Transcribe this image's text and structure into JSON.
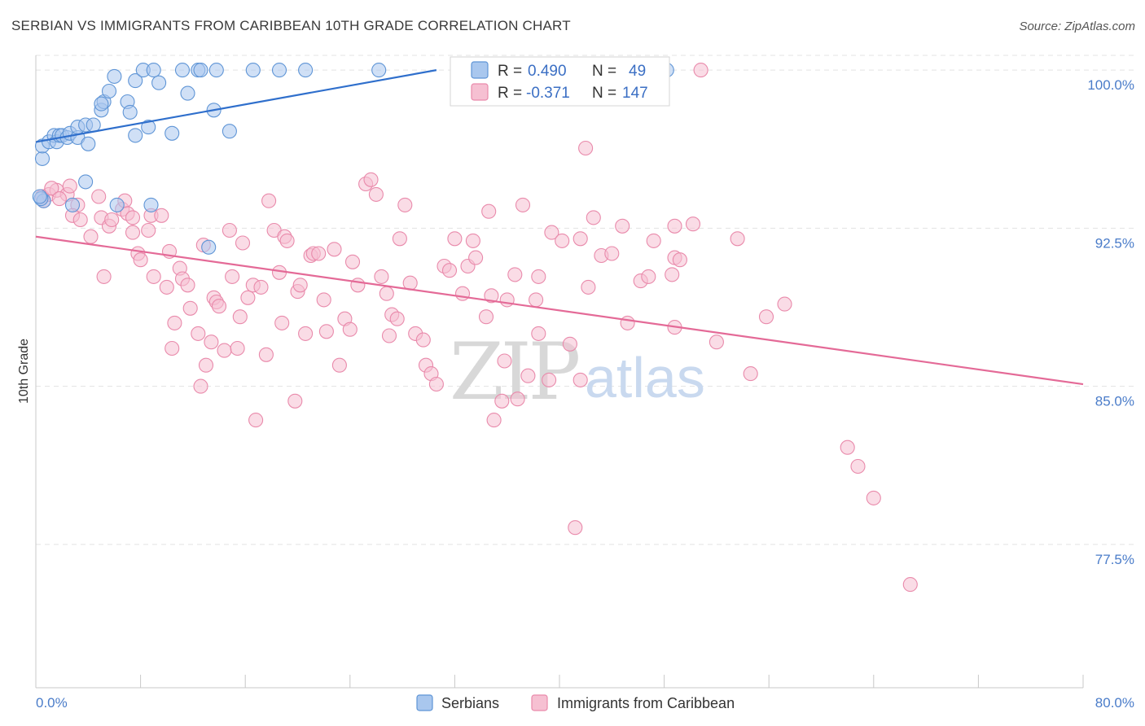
{
  "title": "SERBIAN VS IMMIGRANTS FROM CARIBBEAN 10TH GRADE CORRELATION CHART",
  "source": "Source: ZipAtlas.com",
  "watermark": {
    "zip": "ZIP",
    "atlas": "atlas"
  },
  "colors": {
    "serbians_fill": "#a9c7ee",
    "serbians_stroke": "#5f95d6",
    "serbians_line": "#2f6fcc",
    "caribbean_fill": "#f6c0d2",
    "caribbean_stroke": "#e98aab",
    "caribbean_line": "#e46a97",
    "grid": "#e3e3e3",
    "axis_text": "#4a7cc9"
  },
  "legend": {
    "rows": [
      {
        "r_label": "R =",
        "r_value": "0.490",
        "n_label": "N =",
        "n_value": "49"
      },
      {
        "r_label": "R =",
        "r_value": "-0.371",
        "n_label": "N =",
        "n_value": "147"
      }
    ]
  },
  "chart_data": {
    "type": "scatter",
    "title": "SERBIAN VS IMMIGRANTS FROM CARIBBEAN 10TH GRADE CORRELATION CHART",
    "xlabel": "",
    "ylabel": "10th Grade",
    "xlim": [
      0,
      80
    ],
    "ylim": [
      70.7,
      100.7
    ],
    "x_tick_labels": [
      "0.0%",
      "80.0%"
    ],
    "y_ticks": [
      100.0,
      92.5,
      85.0,
      77.5
    ],
    "y_tick_labels": [
      "100.0%",
      "92.5%",
      "85.0%",
      "77.5%"
    ],
    "grid": true,
    "legend_position": "bottom",
    "series": [
      {
        "name": "Serbians",
        "trend": {
          "x": [
            0.0,
            30.6
          ],
          "y": [
            96.59,
            100.0
          ]
        },
        "points": [
          [
            0.5,
            95.8
          ],
          [
            0.5,
            96.4
          ],
          [
            1.0,
            96.6
          ],
          [
            1.4,
            96.9
          ],
          [
            1.6,
            96.6
          ],
          [
            1.8,
            96.9
          ],
          [
            2.0,
            96.9
          ],
          [
            2.4,
            96.8
          ],
          [
            2.6,
            97.0
          ],
          [
            3.2,
            96.8
          ],
          [
            3.2,
            97.3
          ],
          [
            3.8,
            97.4
          ],
          [
            4.0,
            96.5
          ],
          [
            4.4,
            97.4
          ],
          [
            5.0,
            98.1
          ],
          [
            5.2,
            98.5
          ],
          [
            5.0,
            98.4
          ],
          [
            5.6,
            99.0
          ],
          [
            6.0,
            99.7
          ],
          [
            7.0,
            98.5
          ],
          [
            7.2,
            98.0
          ],
          [
            7.6,
            96.9
          ],
          [
            7.6,
            99.5
          ],
          [
            8.6,
            97.3
          ],
          [
            8.2,
            100.0
          ],
          [
            9.0,
            100.0
          ],
          [
            9.4,
            99.4
          ],
          [
            10.4,
            97.0
          ],
          [
            11.2,
            100.0
          ],
          [
            11.6,
            98.9
          ],
          [
            12.4,
            100.0
          ],
          [
            12.6,
            100.0
          ],
          [
            13.6,
            98.1
          ],
          [
            13.8,
            100.0
          ],
          [
            14.8,
            97.1
          ],
          [
            16.6,
            100.0
          ],
          [
            18.6,
            100.0
          ],
          [
            20.6,
            100.0
          ],
          [
            26.2,
            100.0
          ],
          [
            37.2,
            100.0
          ],
          [
            48.2,
            100.0
          ],
          [
            3.8,
            94.7
          ],
          [
            2.8,
            93.6
          ],
          [
            6.2,
            93.6
          ],
          [
            8.8,
            93.6
          ],
          [
            13.2,
            91.6
          ],
          [
            0.6,
            93.8
          ],
          [
            0.4,
            93.9
          ],
          [
            0.3,
            94.0
          ]
        ]
      },
      {
        "name": "Immigrants from Caribbean",
        "trend": {
          "x": [
            0.0,
            80.0
          ],
          "y": [
            92.1,
            85.1
          ]
        },
        "points": [
          [
            0.5,
            94.0
          ],
          [
            0.6,
            93.8
          ],
          [
            1.0,
            94.1
          ],
          [
            1.6,
            94.3
          ],
          [
            1.2,
            94.4
          ],
          [
            2.4,
            94.1
          ],
          [
            2.6,
            94.5
          ],
          [
            1.8,
            93.9
          ],
          [
            3.2,
            93.6
          ],
          [
            2.8,
            93.1
          ],
          [
            3.4,
            92.9
          ],
          [
            4.2,
            92.1
          ],
          [
            4.8,
            94.0
          ],
          [
            5.0,
            93.0
          ],
          [
            5.6,
            92.6
          ],
          [
            5.2,
            90.2
          ],
          [
            5.8,
            92.9
          ],
          [
            6.6,
            93.4
          ],
          [
            6.8,
            93.8
          ],
          [
            7.0,
            93.2
          ],
          [
            7.4,
            93.0
          ],
          [
            7.4,
            92.3
          ],
          [
            7.8,
            91.3
          ],
          [
            8.0,
            91.0
          ],
          [
            8.6,
            92.4
          ],
          [
            8.8,
            93.1
          ],
          [
            9.0,
            90.2
          ],
          [
            9.6,
            93.1
          ],
          [
            10.0,
            89.7
          ],
          [
            10.2,
            91.4
          ],
          [
            10.6,
            88.0
          ],
          [
            10.4,
            86.8
          ],
          [
            11.0,
            90.6
          ],
          [
            11.2,
            90.1
          ],
          [
            11.6,
            89.8
          ],
          [
            11.8,
            88.7
          ],
          [
            12.4,
            87.5
          ],
          [
            12.6,
            85.0
          ],
          [
            12.8,
            91.7
          ],
          [
            13.0,
            86.0
          ],
          [
            13.4,
            87.1
          ],
          [
            13.6,
            89.2
          ],
          [
            13.8,
            89.0
          ],
          [
            14.0,
            88.8
          ],
          [
            14.4,
            86.7
          ],
          [
            14.8,
            92.4
          ],
          [
            15.0,
            90.2
          ],
          [
            15.4,
            86.8
          ],
          [
            15.6,
            88.3
          ],
          [
            15.8,
            91.8
          ],
          [
            16.2,
            89.2
          ],
          [
            16.6,
            89.8
          ],
          [
            16.8,
            83.4
          ],
          [
            17.2,
            89.7
          ],
          [
            17.6,
            86.5
          ],
          [
            17.8,
            93.8
          ],
          [
            18.2,
            92.4
          ],
          [
            18.6,
            90.4
          ],
          [
            18.8,
            88.0
          ],
          [
            19.0,
            92.1
          ],
          [
            19.2,
            91.9
          ],
          [
            19.8,
            84.3
          ],
          [
            20.0,
            89.5
          ],
          [
            20.2,
            89.8
          ],
          [
            20.6,
            87.5
          ],
          [
            21.0,
            91.2
          ],
          [
            21.2,
            91.3
          ],
          [
            21.6,
            91.3
          ],
          [
            22.0,
            89.1
          ],
          [
            22.2,
            87.6
          ],
          [
            22.8,
            91.5
          ],
          [
            23.2,
            86.0
          ],
          [
            23.6,
            88.2
          ],
          [
            24.0,
            87.7
          ],
          [
            24.2,
            90.9
          ],
          [
            24.6,
            89.8
          ],
          [
            25.2,
            94.6
          ],
          [
            25.6,
            94.8
          ],
          [
            26.0,
            94.1
          ],
          [
            26.4,
            90.2
          ],
          [
            26.8,
            89.4
          ],
          [
            27.0,
            87.4
          ],
          [
            27.2,
            88.4
          ],
          [
            27.6,
            88.2
          ],
          [
            27.8,
            92.0
          ],
          [
            28.2,
            93.6
          ],
          [
            28.6,
            89.9
          ],
          [
            29.0,
            87.5
          ],
          [
            29.6,
            87.2
          ],
          [
            29.8,
            86.0
          ],
          [
            30.2,
            85.6
          ],
          [
            30.6,
            85.1
          ],
          [
            31.2,
            90.7
          ],
          [
            31.6,
            90.5
          ],
          [
            32.0,
            92.0
          ],
          [
            32.6,
            89.4
          ],
          [
            33.0,
            90.7
          ],
          [
            33.4,
            91.9
          ],
          [
            33.6,
            91.1
          ],
          [
            34.4,
            88.3
          ],
          [
            34.6,
            93.3
          ],
          [
            34.8,
            89.3
          ],
          [
            35.0,
            83.4
          ],
          [
            35.6,
            84.3
          ],
          [
            35.8,
            86.2
          ],
          [
            36.0,
            89.1
          ],
          [
            36.6,
            90.3
          ],
          [
            36.8,
            84.4
          ],
          [
            37.2,
            93.6
          ],
          [
            37.6,
            85.5
          ],
          [
            38.2,
            89.1
          ],
          [
            38.4,
            87.5
          ],
          [
            38.4,
            90.2
          ],
          [
            39.2,
            85.3
          ],
          [
            39.4,
            92.3
          ],
          [
            40.2,
            91.9
          ],
          [
            40.8,
            87.0
          ],
          [
            41.6,
            85.3
          ],
          [
            41.2,
            78.3
          ],
          [
            41.6,
            92.0
          ],
          [
            42.0,
            96.3
          ],
          [
            42.2,
            89.7
          ],
          [
            42.6,
            93.0
          ],
          [
            43.2,
            91.2
          ],
          [
            44.0,
            91.3
          ],
          [
            44.8,
            92.6
          ],
          [
            45.2,
            88.0
          ],
          [
            46.2,
            90.0
          ],
          [
            46.8,
            90.2
          ],
          [
            47.2,
            91.9
          ],
          [
            48.6,
            90.3
          ],
          [
            48.8,
            92.6
          ],
          [
            48.8,
            91.1
          ],
          [
            48.8,
            87.8
          ],
          [
            49.2,
            91.0
          ],
          [
            50.2,
            92.7
          ],
          [
            50.8,
            100.0
          ],
          [
            52.0,
            87.1
          ],
          [
            53.6,
            92.0
          ],
          [
            54.6,
            85.6
          ],
          [
            55.8,
            88.3
          ],
          [
            57.2,
            88.9
          ],
          [
            62.0,
            82.1
          ],
          [
            62.8,
            81.2
          ],
          [
            64.0,
            79.7
          ],
          [
            66.8,
            75.6
          ]
        ]
      }
    ]
  }
}
